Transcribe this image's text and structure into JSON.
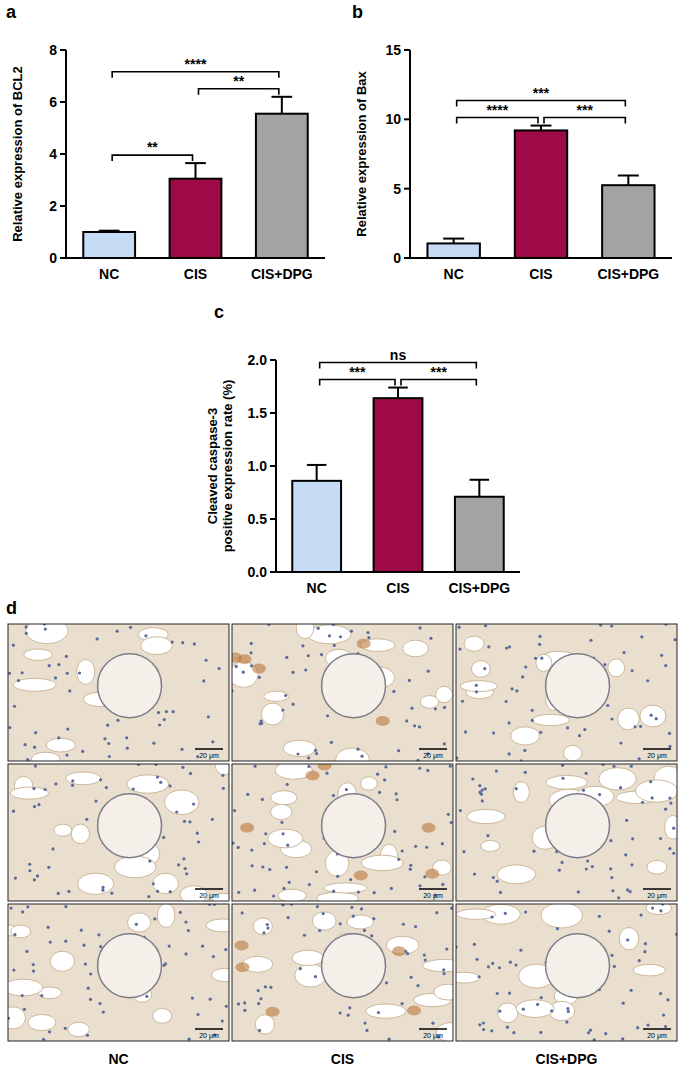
{
  "chart_data": [
    {
      "type": "bar",
      "panel_label": "a",
      "y_label": [
        "Relative expression of BCL2"
      ],
      "categories": [
        "NC",
        "CIS",
        "CIS+DPG"
      ],
      "values": [
        1.0,
        3.05,
        5.55
      ],
      "errors": [
        0.05,
        0.6,
        0.65
      ],
      "colors": [
        "#c6dcf4",
        "#9e0a47",
        "#a3a3a3"
      ],
      "ylim": [
        0,
        8
      ],
      "yticks": [
        0,
        2,
        4,
        6,
        8
      ],
      "annotations": [
        {
          "between": [
            "NC",
            "CIS"
          ],
          "label": "**"
        },
        {
          "between": [
            "CIS",
            "CIS+DPG"
          ],
          "label": "**"
        },
        {
          "between": [
            "NC",
            "CIS+DPG"
          ],
          "label": "****"
        }
      ]
    },
    {
      "type": "bar",
      "panel_label": "b",
      "y_label": [
        "Relative expression of Bax"
      ],
      "categories": [
        "NC",
        "CIS",
        "CIS+DPG"
      ],
      "values": [
        1.05,
        9.2,
        5.25
      ],
      "errors": [
        0.35,
        0.35,
        0.7
      ],
      "colors": [
        "#c6dcf4",
        "#9e0a47",
        "#a3a3a3"
      ],
      "ylim": [
        0,
        15
      ],
      "yticks": [
        0,
        5,
        10,
        15
      ],
      "annotations": [
        {
          "between": [
            "NC",
            "CIS"
          ],
          "label": "****"
        },
        {
          "between": [
            "CIS",
            "CIS+DPG"
          ],
          "label": "***"
        },
        {
          "between": [
            "NC",
            "CIS+DPG"
          ],
          "label": "***"
        }
      ]
    },
    {
      "type": "bar",
      "panel_label": "c",
      "y_label": [
        "Cleaved caspase-3",
        "positive expression rate (%)"
      ],
      "categories": [
        "NC",
        "CIS",
        "CIS+DPG"
      ],
      "values": [
        0.86,
        1.64,
        0.71
      ],
      "errors": [
        0.15,
        0.1,
        0.16
      ],
      "colors": [
        "#c6dcf4",
        "#9e0a47",
        "#a3a3a3"
      ],
      "ylim": [
        0,
        2
      ],
      "yticks": [
        {
          "value": 0,
          "label": "0.0"
        },
        {
          "value": 0.5,
          "label": "0.5"
        },
        {
          "value": 1,
          "label": "1.0"
        },
        {
          "value": 1.5,
          "label": "1.5"
        },
        {
          "value": 2,
          "label": "2.0"
        }
      ],
      "annotations": [
        {
          "between": [
            "NC",
            "CIS"
          ],
          "label": "***"
        },
        {
          "between": [
            "CIS",
            "CIS+DPG"
          ],
          "label": "***"
        },
        {
          "between": [
            "NC",
            "CIS+DPG"
          ],
          "label": "ns"
        }
      ]
    }
  ],
  "micrographs": {
    "panel_label": "d",
    "columns": [
      "NC",
      "CIS",
      "CIS+DPG"
    ],
    "rows": 3,
    "scale_bar": "20 μm"
  }
}
